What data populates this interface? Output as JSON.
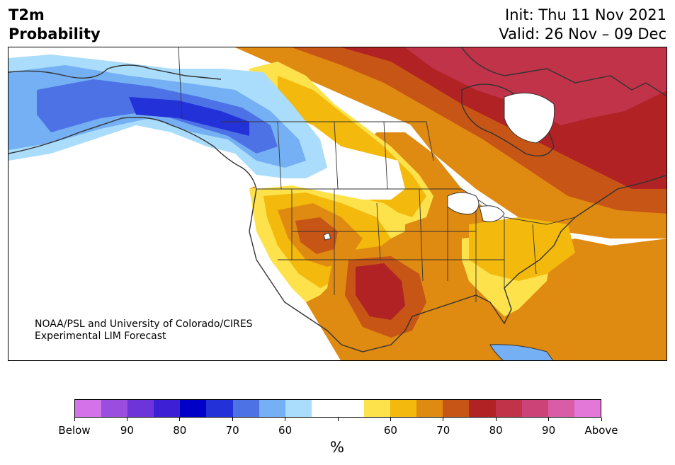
{
  "header": {
    "title_line1": "T2m",
    "title_line2": "Probability",
    "init": "Init: Thu 11 Nov 2021",
    "valid": "Valid: 26 Nov – 09 Dec"
  },
  "map": {
    "credit_line1": "NOAA/PSL and University of Colorado/CIRES",
    "credit_line2": "Experimental LIM Forecast"
  },
  "colorbar": {
    "colors": [
      "#d472ea",
      "#9a4ddf",
      "#6d35d9",
      "#3d1fd6",
      "#0000c9",
      "#2331d9",
      "#4d72e6",
      "#74b0f3",
      "#aadcfb",
      "#ffffff",
      "#ffffff",
      "#fde24b",
      "#f3b90c",
      "#df8a11",
      "#c65516",
      "#b02223",
      "#c13349",
      "#cc4477",
      "#d85ca6",
      "#e478d8"
    ],
    "labels": [
      "Below",
      "90",
      "80",
      "70",
      "60",
      "60",
      "70",
      "80",
      "90",
      "Above"
    ],
    "unit": "%"
  },
  "legend_colors": {
    "below_90": "#9a4ddf",
    "below_60": "#aadcfb",
    "neutral": "#ffffff",
    "above_60": "#fde24b",
    "above_80": "#b02223"
  }
}
